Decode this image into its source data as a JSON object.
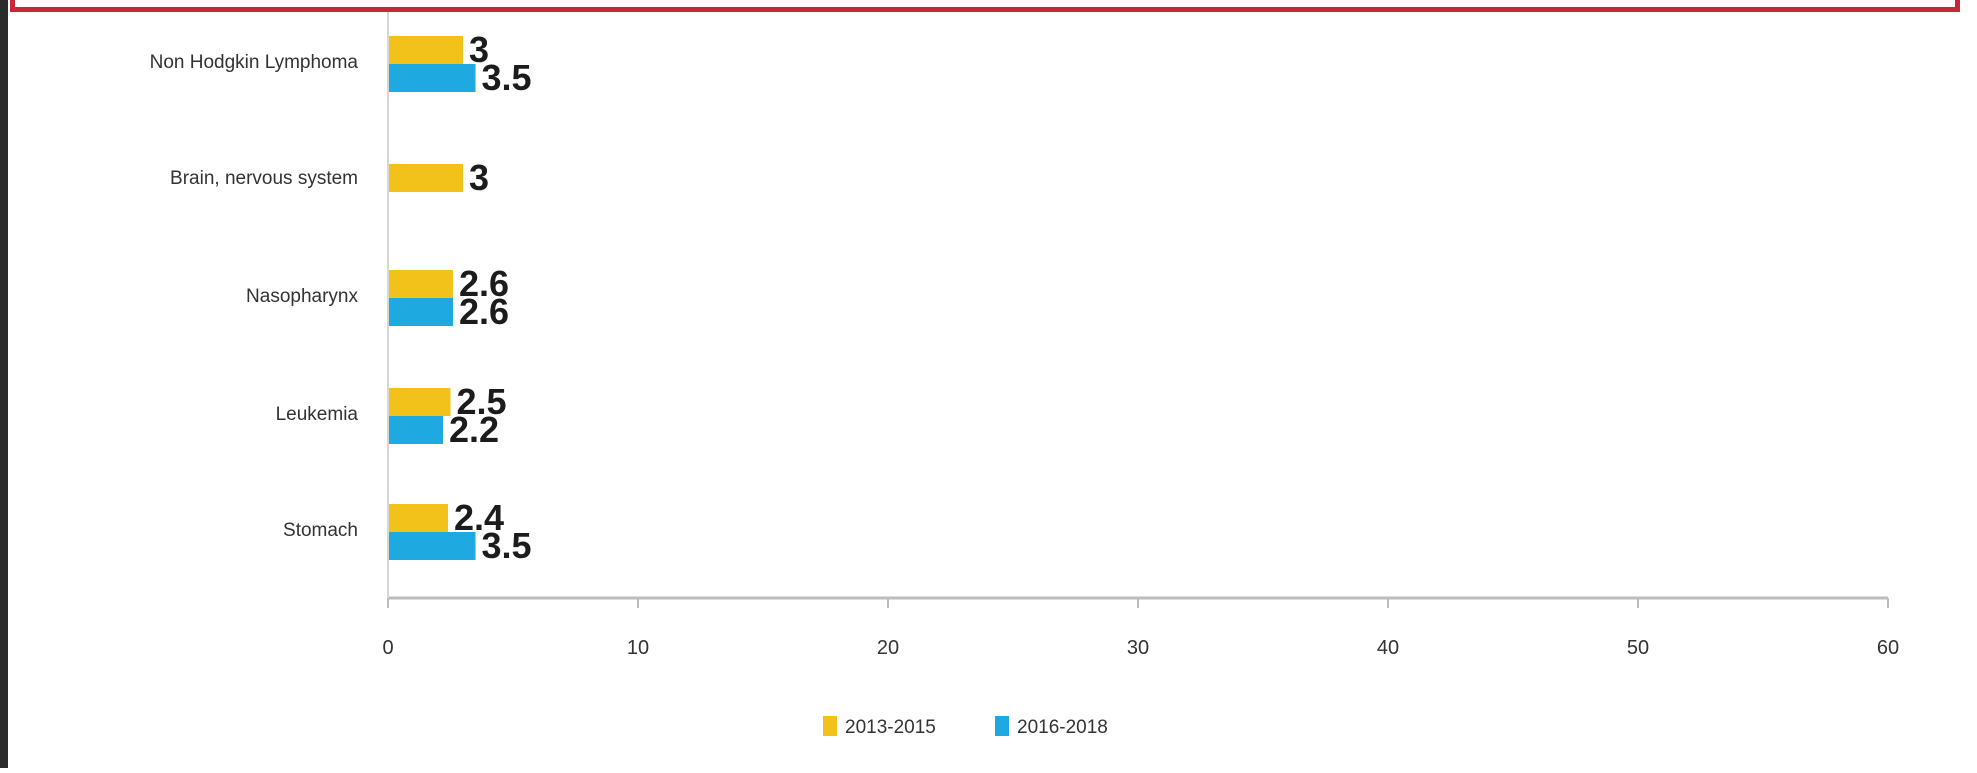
{
  "chart_data": {
    "type": "bar",
    "orientation": "horizontal",
    "categories": [
      "Non Hodgkin Lymphoma",
      "Brain, nervous system",
      "Nasopharynx",
      "Leukemia",
      "Stomach"
    ],
    "series": [
      {
        "name": "2013-2015",
        "values": [
          3,
          3,
          2.6,
          2.5,
          2.4
        ],
        "labels": [
          "3",
          "3",
          "2.6",
          "2.5",
          "2.4"
        ],
        "color": "#f2c21b"
      },
      {
        "name": "2016-2018",
        "values": [
          3.5,
          null,
          2.6,
          2.2,
          3.5
        ],
        "labels": [
          "3.5",
          "",
          "2.6",
          "2.2",
          "3.5"
        ],
        "color": "#1ea9e1"
      }
    ],
    "xlim": [
      0,
      60
    ],
    "xticks": [
      "0",
      "10",
      "20",
      "30",
      "40",
      "50",
      "60"
    ],
    "legend_position": "bottom-center",
    "grid": false
  },
  "colors": {
    "frame_red": "#c6283a",
    "frame_dark": "#2b2b2b",
    "axis": "#bdbdbd"
  }
}
